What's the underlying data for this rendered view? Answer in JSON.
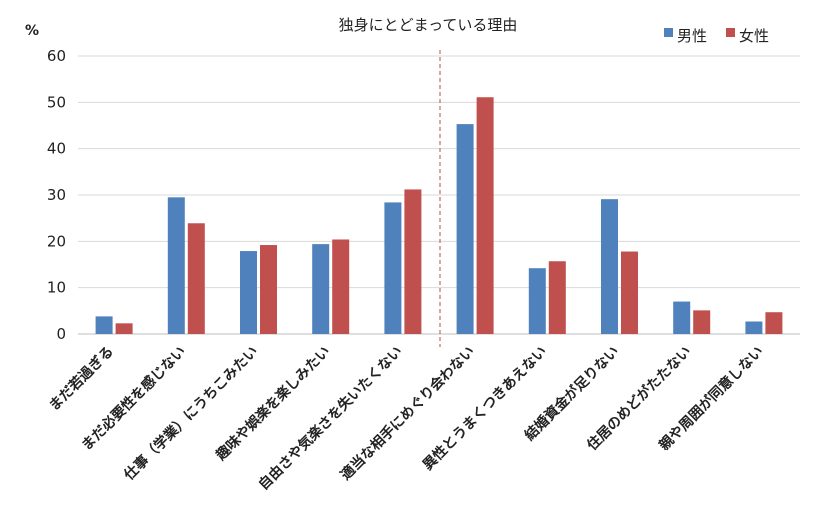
{
  "chart_data": {
    "type": "bar",
    "title": "独身にとどまっている理由",
    "ylabel": "%",
    "ylim": [
      0,
      60
    ],
    "yticks": [
      0,
      10,
      20,
      30,
      40,
      50,
      60
    ],
    "grid": true,
    "legend_position": "top-right",
    "categories": [
      "まだ若過ぎる",
      "まだ必要性を感じない",
      "仕事（学業）にうちこみたい",
      "趣味や娯楽を楽しみたい",
      "自由さや気楽さを失いたくない",
      "適当な相手にめぐり会わない",
      "異性とうまくつきあえない",
      "結婚資金が足りない",
      "住居のめどがたたない",
      "親や周囲が同意しない"
    ],
    "series": [
      {
        "name": "男性",
        "color": "#4f81bd",
        "values": [
          3.8,
          29.5,
          17.9,
          19.4,
          28.4,
          45.3,
          14.2,
          29.1,
          7.0,
          2.7
        ]
      },
      {
        "name": "女性",
        "color": "#c0504d",
        "values": [
          2.3,
          23.9,
          19.2,
          20.4,
          31.2,
          51.1,
          15.7,
          17.8,
          5.1,
          4.7
        ]
      }
    ]
  }
}
